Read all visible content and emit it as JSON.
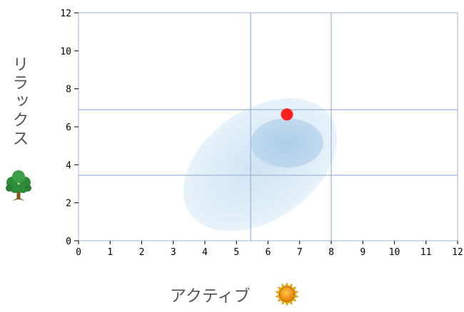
{
  "chart_data": {
    "type": "scatter",
    "xlabel": "アクティブ",
    "ylabel": "リラックス",
    "xlim": [
      0,
      12
    ],
    "ylim": [
      0,
      12
    ],
    "x_ticks": [
      "0",
      "1",
      "2",
      "3",
      "4",
      "5",
      "6",
      "7",
      "8",
      "9",
      "10",
      "11",
      "12"
    ],
    "y_ticks": [
      "0",
      "2",
      "4",
      "6",
      "8",
      "10",
      "12"
    ],
    "reference_lines": {
      "x": [
        5.45,
        8.0
      ],
      "y": [
        3.45,
        6.9
      ]
    },
    "regions": [
      {
        "kind": "outer-ellipse",
        "cx": 5.75,
        "cy": 4.0,
        "rx": 2.7,
        "ry": 2.9,
        "rotation_deg": -35,
        "color": "#d8e9f6"
      },
      {
        "kind": "inner-circle",
        "cx": 6.6,
        "cy": 5.15,
        "rx": 1.15,
        "ry": 1.3,
        "rotation_deg": 0,
        "color": "#b2d1ea"
      }
    ],
    "points": [
      {
        "x": 6.6,
        "y": 6.65,
        "color": "#ff2020"
      }
    ],
    "grid": false,
    "colors": {
      "frame": "#9fb6d8",
      "ref_line": "#9fb6d8",
      "tick": "#000000"
    }
  },
  "icons": {
    "y_axis": "tree-icon",
    "x_axis": "sun-icon"
  }
}
